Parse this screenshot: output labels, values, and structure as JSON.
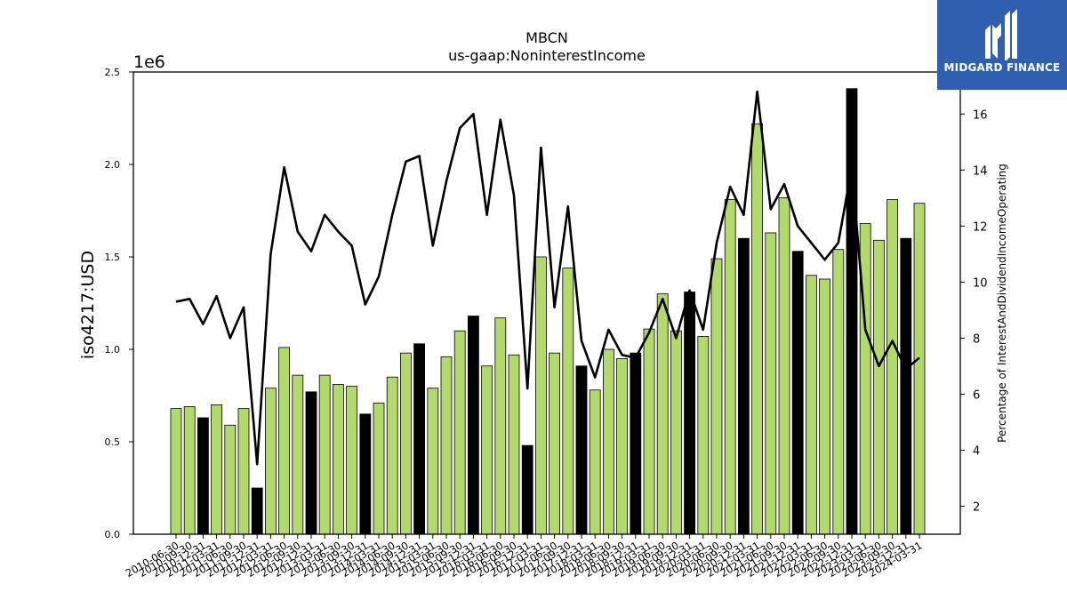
{
  "chart_data": {
    "type": "bar",
    "title": "MBCN",
    "subtitle": "us-gaap:NoninterestIncome",
    "ylabel": "iso4217:USD",
    "y2label": "Percentage of InterestAndDividendIncomeOperating",
    "y_scale_label": "1e6",
    "ylim": [
      0,
      2.5
    ],
    "y2lim": [
      1,
      17.5
    ],
    "y_ticks": [
      "0.0",
      "0.5",
      "1.0",
      "1.5",
      "2.0",
      "2.5"
    ],
    "y2_ticks": [
      "2",
      "4",
      "6",
      "8",
      "10",
      "12",
      "14",
      "16"
    ],
    "grid": false,
    "colors": {
      "bar": "#b1d96b",
      "bar_q4": "#000000",
      "line": "#000000"
    },
    "categories": [
      "2010-06-30",
      "2010-09-30",
      "2010-12-31",
      "2011-03-31",
      "2011-06-30",
      "2011-09-30",
      "2011-12-31",
      "2012-03-31",
      "2012-06-30",
      "2012-09-30",
      "2012-12-31",
      "2013-03-31",
      "2013-06-30",
      "2013-09-30",
      "2013-12-31",
      "2014-03-31",
      "2014-06-30",
      "2014-09-30",
      "2014-12-31",
      "2015-03-31",
      "2015-06-30",
      "2015-09-30",
      "2015-12-31",
      "2016-03-31",
      "2016-06-30",
      "2016-09-30",
      "2016-12-31",
      "2017-03-31",
      "2017-06-30",
      "2017-09-30",
      "2017-12-31",
      "2018-03-31",
      "2018-06-30",
      "2018-09-30",
      "2018-12-31",
      "2019-03-31",
      "2019-06-30",
      "2019-09-30",
      "2019-12-31",
      "2020-03-31",
      "2020-06-30",
      "2020-09-30",
      "2020-12-31",
      "2021-03-31",
      "2021-06-30",
      "2021-09-30",
      "2021-12-31",
      "2022-03-31",
      "2022-06-30",
      "2022-09-30",
      "2022-12-31",
      "2023-03-31",
      "2023-06-30",
      "2023-09-30",
      "2023-12-31",
      "2024-03-31"
    ],
    "series": [
      {
        "values": [
          0.68,
          0.69,
          0.63,
          0.7,
          0.59,
          0.68,
          0.25,
          0.79,
          1.01,
          0.86,
          0.77,
          0.86,
          0.81,
          0.8,
          0.65,
          0.71,
          0.85,
          0.98,
          1.03,
          0.79,
          0.96,
          1.1,
          1.18,
          0.91,
          1.17,
          0.97,
          0.48,
          1.5,
          0.98,
          1.44,
          0.91,
          0.78,
          1.0,
          0.95,
          0.98,
          1.11,
          1.3,
          1.1,
          1.31,
          1.07,
          1.49,
          1.81,
          1.6,
          2.22,
          1.63,
          1.82,
          1.53,
          1.4,
          1.38,
          1.54,
          2.41,
          1.68,
          1.59,
          1.81,
          1.6,
          1.79
        ]
      },
      {
        "axis": "right",
        "values": [
          9.3,
          9.4,
          8.5,
          9.5,
          8.0,
          9.1,
          3.5,
          11.0,
          14.1,
          11.8,
          11.1,
          12.4,
          11.8,
          11.3,
          9.2,
          10.2,
          12.4,
          14.3,
          14.5,
          11.3,
          13.6,
          15.5,
          16.0,
          12.4,
          15.8,
          13.1,
          6.2,
          14.8,
          9.1,
          12.7,
          7.9,
          6.6,
          8.3,
          7.4,
          7.3,
          8.2,
          9.4,
          8.0,
          9.7,
          8.3,
          11.4,
          13.4,
          12.4,
          16.8,
          12.6,
          13.5,
          12.0,
          11.4,
          10.8,
          11.4,
          14.1,
          8.3,
          7.0,
          7.9,
          6.9,
          7.3
        ]
      }
    ]
  },
  "logo": {
    "text": "MIDGARD FINANCE",
    "icon": "midgard-logo-icon"
  }
}
